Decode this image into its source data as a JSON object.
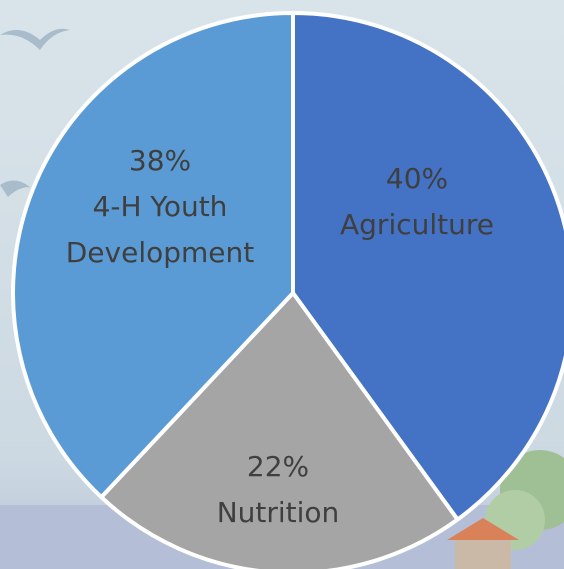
{
  "chart_data": {
    "type": "pie",
    "categories": [
      "Agriculture",
      "Nutrition",
      "4-H Youth Development"
    ],
    "values": [
      40,
      22,
      38
    ],
    "value_labels": [
      "40%",
      "22%",
      "38%"
    ],
    "colors": [
      "#4472c4",
      "#a5a5a5",
      "#5b9bd5"
    ]
  }
}
